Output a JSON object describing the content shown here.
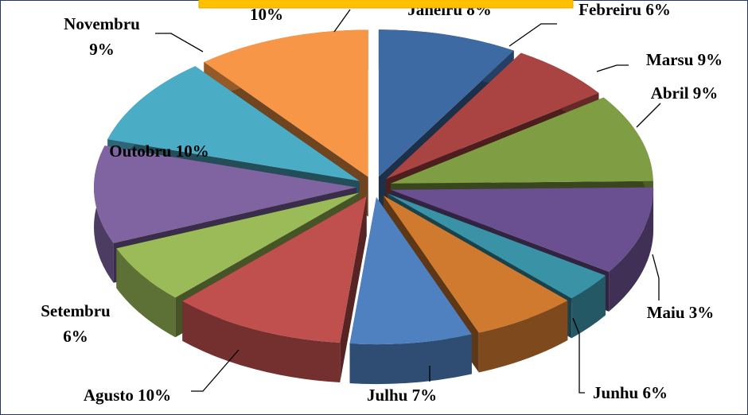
{
  "chart_data": {
    "type": "pie",
    "categories": [
      "Janeiru",
      "Febreiru",
      "Marsu",
      "Abril",
      "Maiu",
      "Junhu",
      "Julhu",
      "Agusto",
      "Setembru",
      "Outobru",
      "Novembru",
      null
    ],
    "values": [
      8,
      6,
      9,
      9,
      3,
      6,
      7,
      10,
      6,
      10,
      9,
      10
    ],
    "value_labels": [
      "8%",
      "6%",
      "9%",
      "9%",
      "3%",
      "6%",
      "7%",
      "10%",
      "6%",
      "10%",
      "9%",
      "10%"
    ],
    "colors": [
      "#3e6aa4",
      "#a94442",
      "#7f9d42",
      "#6a5090",
      "#3a92a6",
      "#d07a30",
      "#4f81c0",
      "#c0504d",
      "#9bbb59",
      "#8064a2",
      "#4bacc6",
      "#f79646"
    ]
  }
}
